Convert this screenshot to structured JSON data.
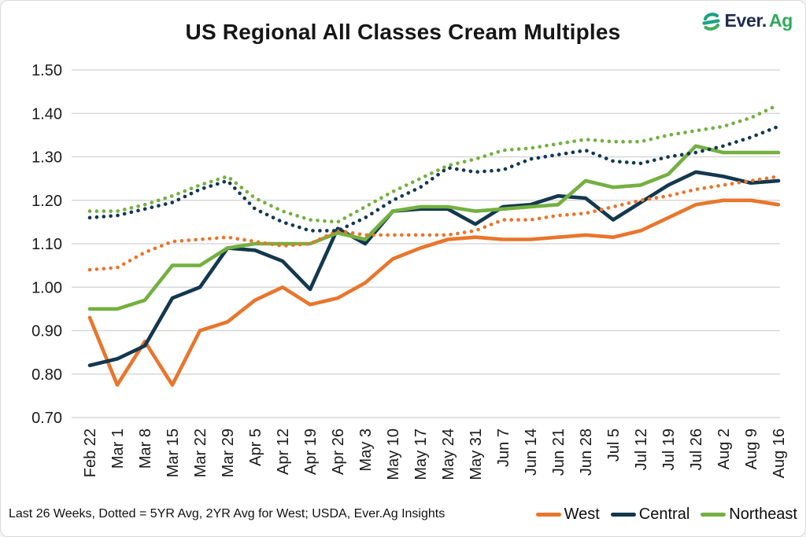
{
  "page": {
    "title": "US Regional All Classes Cream Multiples"
  },
  "logo": {
    "brand_primary": "Ever.",
    "brand_secondary": "Ag",
    "mark_color": "#1ba288",
    "primary_color": "#1f2c4e",
    "secondary_color": "#2fa85c"
  },
  "footer": {
    "note": "Last 26 Weeks, Dotted = 5YR Avg, 2YR Avg for West; USDA, Ever.Ag Insights"
  },
  "colors": {
    "west": "#e8762c",
    "central": "#13384f",
    "northeast": "#74b041",
    "gridline": "#d8d8d8",
    "tick_text": "#1a1a1a"
  },
  "chart_data": {
    "type": "line",
    "title": "US Regional All Classes Cream Multiples",
    "xlabel": "",
    "ylabel": "",
    "ylim": [
      0.7,
      1.5
    ],
    "yticks": [
      "1.50",
      "1.40",
      "1.30",
      "1.20",
      "1.10",
      "1.00",
      "0.90",
      "0.80",
      "0.70"
    ],
    "grid": "horizontal",
    "legend_position": "bottom-right",
    "x_labels": [
      "Feb 22",
      "Mar 1",
      "Mar 8",
      "Mar 15",
      "Mar 22",
      "Mar 29",
      "Apr 5",
      "Apr 12",
      "Apr 19",
      "Apr 26",
      "May 3",
      "May 10",
      "May 17",
      "May 24",
      "May 31",
      "Jun 7",
      "Jun 14",
      "Jun 21",
      "Jun 28",
      "Jul 5",
      "Jul 12",
      "Jul 19",
      "Jul 26",
      "Aug 2",
      "Aug 9",
      "Aug 16"
    ],
    "legend": [
      {
        "label": "West",
        "color": "#e8762c"
      },
      {
        "label": "Central",
        "color": "#13384f"
      },
      {
        "label": "Northeast",
        "color": "#74b041"
      }
    ],
    "series": [
      {
        "name": "West",
        "style": "solid",
        "color": "#e8762c",
        "values": [
          0.93,
          0.775,
          0.875,
          0.775,
          0.9,
          0.92,
          0.97,
          1.0,
          0.96,
          0.975,
          1.01,
          1.065,
          1.09,
          1.11,
          1.115,
          1.11,
          1.11,
          1.115,
          1.12,
          1.115,
          1.13,
          1.16,
          1.19,
          1.2,
          1.2,
          1.19
        ]
      },
      {
        "name": "Central",
        "style": "solid",
        "color": "#13384f",
        "values": [
          0.82,
          0.835,
          0.865,
          0.975,
          1.0,
          1.09,
          1.085,
          1.06,
          0.995,
          1.135,
          1.1,
          1.175,
          1.18,
          1.18,
          1.145,
          1.185,
          1.19,
          1.21,
          1.205,
          1.155,
          1.195,
          1.235,
          1.265,
          1.255,
          1.24,
          1.245
        ]
      },
      {
        "name": "Northeast",
        "style": "solid",
        "color": "#74b041",
        "values": [
          0.95,
          0.95,
          0.97,
          1.05,
          1.05,
          1.09,
          1.1,
          1.1,
          1.1,
          1.125,
          1.11,
          1.175,
          1.185,
          1.185,
          1.175,
          1.18,
          1.185,
          1.19,
          1.245,
          1.23,
          1.235,
          1.26,
          1.325,
          1.31,
          1.31,
          1.31
        ]
      },
      {
        "name": "West 2YR Avg",
        "style": "dotted",
        "color": "#e8762c",
        "values": [
          1.04,
          1.045,
          1.08,
          1.105,
          1.11,
          1.115,
          1.105,
          1.095,
          1.1,
          1.13,
          1.12,
          1.12,
          1.12,
          1.12,
          1.13,
          1.155,
          1.155,
          1.165,
          1.17,
          1.185,
          1.2,
          1.21,
          1.225,
          1.235,
          1.245,
          1.255
        ]
      },
      {
        "name": "Central 5YR Avg",
        "style": "dotted",
        "color": "#13384f",
        "values": [
          1.16,
          1.165,
          1.18,
          1.195,
          1.225,
          1.245,
          1.18,
          1.15,
          1.13,
          1.13,
          1.16,
          1.2,
          1.23,
          1.275,
          1.265,
          1.27,
          1.295,
          1.305,
          1.315,
          1.29,
          1.285,
          1.3,
          1.31,
          1.325,
          1.345,
          1.37
        ]
      },
      {
        "name": "Northeast 5YR Avg",
        "style": "dotted",
        "color": "#74b041",
        "values": [
          1.175,
          1.175,
          1.19,
          1.21,
          1.235,
          1.255,
          1.205,
          1.175,
          1.155,
          1.15,
          1.185,
          1.22,
          1.25,
          1.28,
          1.295,
          1.315,
          1.32,
          1.33,
          1.34,
          1.335,
          1.335,
          1.35,
          1.36,
          1.37,
          1.39,
          1.42
        ]
      }
    ]
  }
}
